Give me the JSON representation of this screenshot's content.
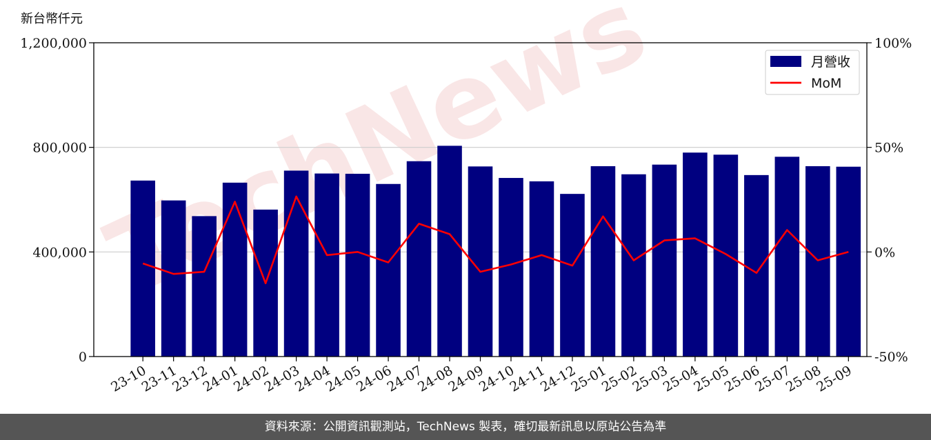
{
  "chart_data": {
    "type": "bar",
    "unit_label": "新台幣仟元",
    "categories": [
      "23-10",
      "23-11",
      "23-12",
      "24-01",
      "24-02",
      "24-03",
      "24-04",
      "24-05",
      "24-06",
      "24-07",
      "24-08",
      "24-09",
      "24-10",
      "24-11",
      "24-12",
      "25-01",
      "25-02",
      "25-03",
      "25-04",
      "25-05",
      "25-06",
      "25-07",
      "25-08",
      "25-09"
    ],
    "series": [
      {
        "name": "月營收",
        "kind": "bar",
        "axis": "left",
        "color": "#000080",
        "values": [
          673000,
          597000,
          537000,
          665000,
          562000,
          711000,
          700000,
          699000,
          660000,
          747000,
          806000,
          727000,
          683000,
          670000,
          622000,
          728000,
          697000,
          734000,
          780000,
          772000,
          694000,
          764000,
          728000,
          726000
        ]
      },
      {
        "name": "MoM",
        "kind": "line",
        "axis": "right",
        "color": "#ff0000",
        "values": [
          -5.5,
          -10.5,
          -9.5,
          24.0,
          -15.0,
          26.5,
          -1.5,
          0,
          -5.0,
          13.5,
          8.5,
          -9.5,
          -6.0,
          -1.5,
          -6.5,
          17.0,
          -4.0,
          5.5,
          6.5,
          -1.0,
          -10.0,
          10.5,
          -4.0,
          0
        ]
      }
    ],
    "y_left": {
      "ylim": [
        0,
        1200000
      ],
      "ticks": [
        0,
        400000,
        800000,
        1200000
      ],
      "tick_labels": [
        "0",
        "400,000",
        "800,000",
        "1,200,000"
      ]
    },
    "y_right": {
      "ylim": [
        -50,
        100
      ],
      "ticks": [
        -50,
        0,
        50,
        100
      ],
      "tick_labels": [
        "-50%",
        "0%",
        "50%",
        "100%"
      ]
    },
    "grid": "horizontal",
    "legend_position": "top-right"
  },
  "watermark_text": "TechNews",
  "footer_text": "資料來源：公開資訊觀測站，TechNews 製表，確切最新訊息以原站公告為準"
}
